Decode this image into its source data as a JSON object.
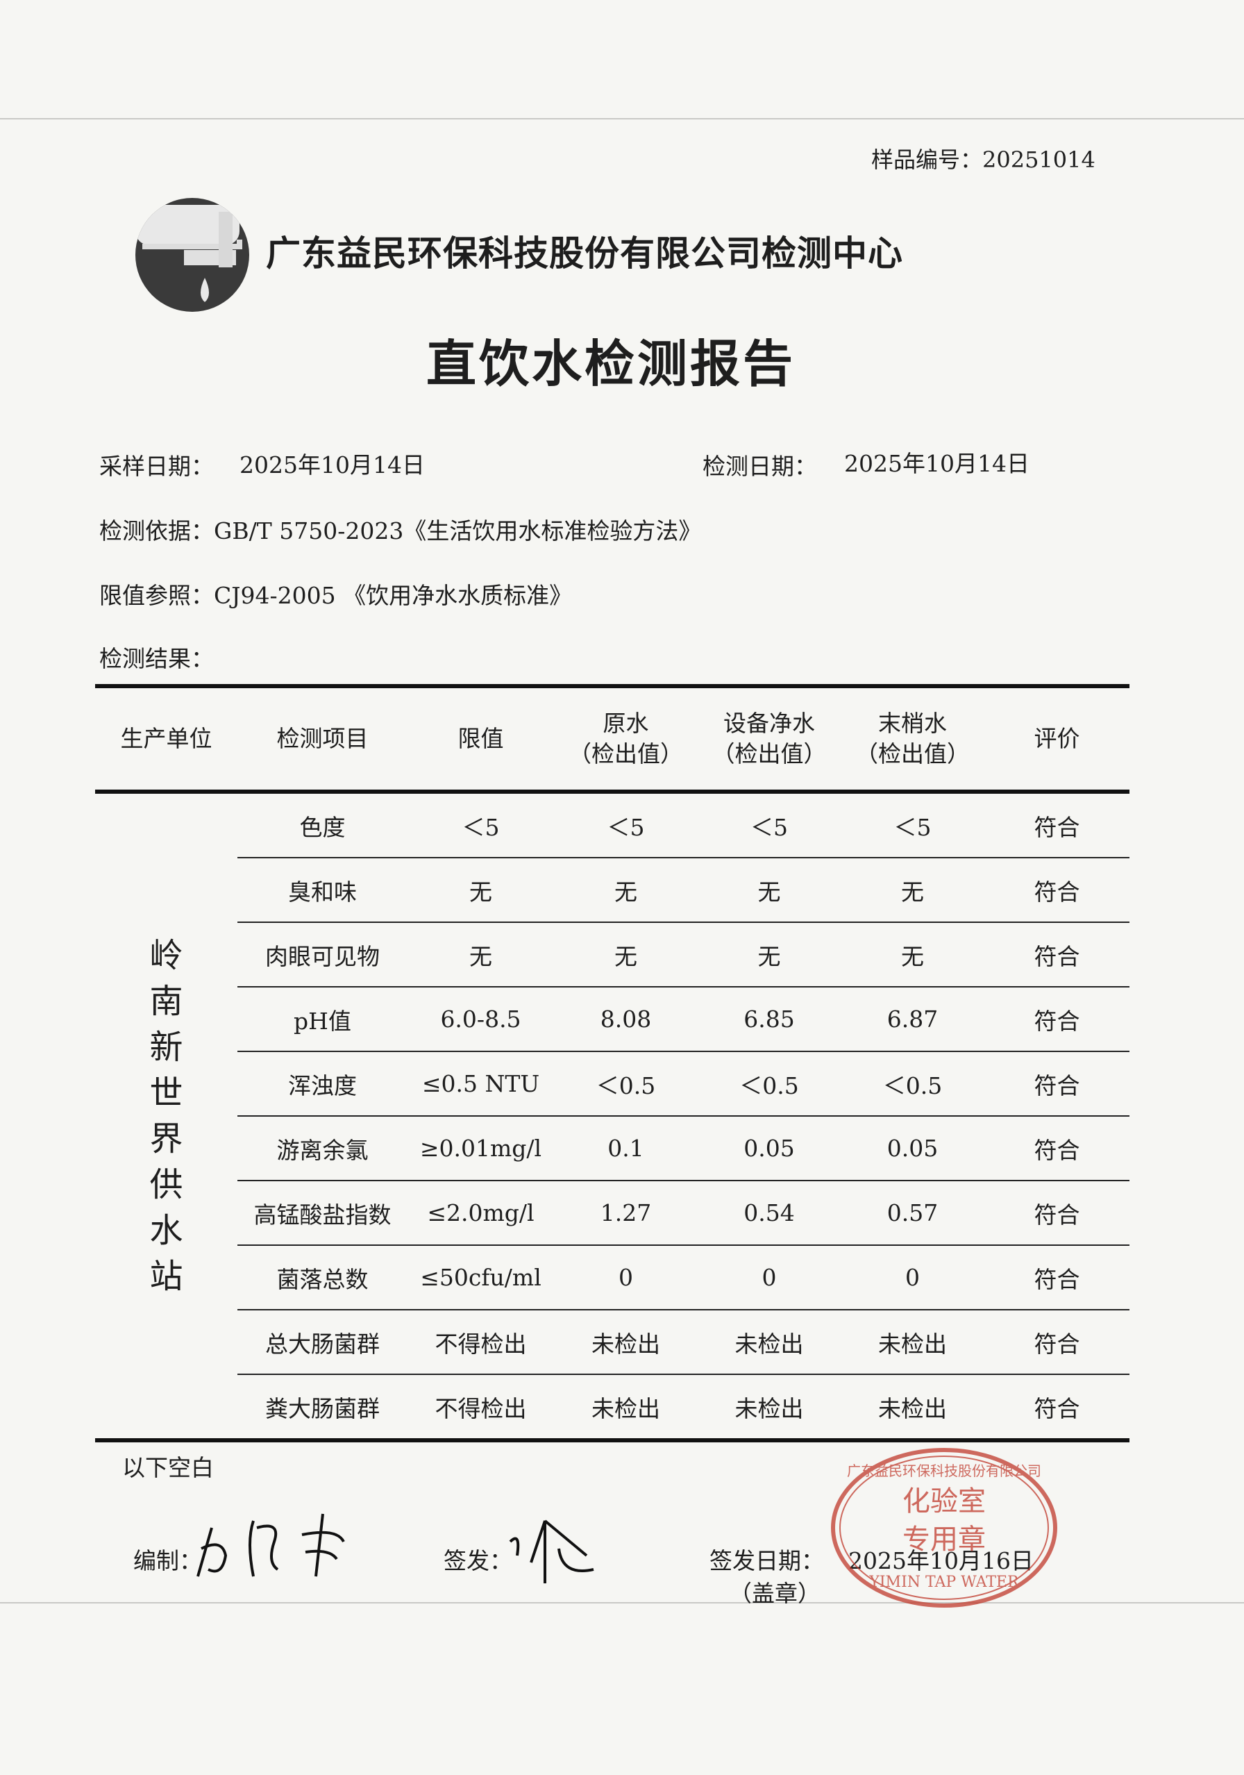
{
  "sample_no": "样品编号：20251014",
  "company": "广东益民环保科技股份有限公司检测中心",
  "title": "直饮水检测报告",
  "sampling_date_label": "采样日期：",
  "sampling_date": "2025年10月14日",
  "test_date_label": "检测日期：",
  "test_date": "2025年10月14日",
  "basis": "检测依据：GB/T 5750-2023《生活饮用水标准检验方法》",
  "limit_ref": "限值参照：CJ94-2005 《饮用净水水质标准》",
  "results_label": "检测结果：",
  "table": {
    "headers": [
      "生产单位",
      "检测项目",
      "限值",
      "原水\n（检出值）",
      "设备净水\n（检出值）",
      "末梢水\n（检出值）",
      "评价"
    ],
    "unit": "岭南新世界供水站",
    "rows": [
      [
        "色度",
        "＜5",
        "＜5",
        "＜5",
        "＜5",
        "符合"
      ],
      [
        "臭和味",
        "无",
        "无",
        "无",
        "无",
        "符合"
      ],
      [
        "肉眼可见物",
        "无",
        "无",
        "无",
        "无",
        "符合"
      ],
      [
        "pH值",
        "6.0-8.5",
        "8.08",
        "6.85",
        "6.87",
        "符合"
      ],
      [
        "浑浊度",
        "≤0.5 NTU",
        "＜0.5",
        "＜0.5",
        "＜0.5",
        "符合"
      ],
      [
        "游离余氯",
        "≥0.01mg/l",
        "0.1",
        "0.05",
        "0.05",
        "符合"
      ],
      [
        "高锰酸盐指数",
        "≤2.0mg/l",
        "1.27",
        "0.54",
        "0.57",
        "符合"
      ],
      [
        "菌落总数",
        "≤50cfu/ml",
        "0",
        "0",
        "0",
        "符合"
      ],
      [
        "总大肠菌群",
        "不得检出",
        "未检出",
        "未检出",
        "未检出",
        "符合"
      ],
      [
        "粪大肠菌群",
        "不得检出",
        "未检出",
        "未检出",
        "未检出",
        "符合"
      ]
    ]
  },
  "blank_note": "以下空白",
  "compiled_label": "编制：",
  "issued_label": "签发：",
  "issue_date_label": "签发日期：",
  "issue_date": "2025年10月16日",
  "seal_label": "（盖章）",
  "stamp": {
    "top_text": "广东益民环保科技股份有限公司",
    "center_line1": "化验室",
    "center_line2": "专用章",
    "bottom_text": "YIMIN TAP WATER",
    "color": "#c0392b"
  }
}
